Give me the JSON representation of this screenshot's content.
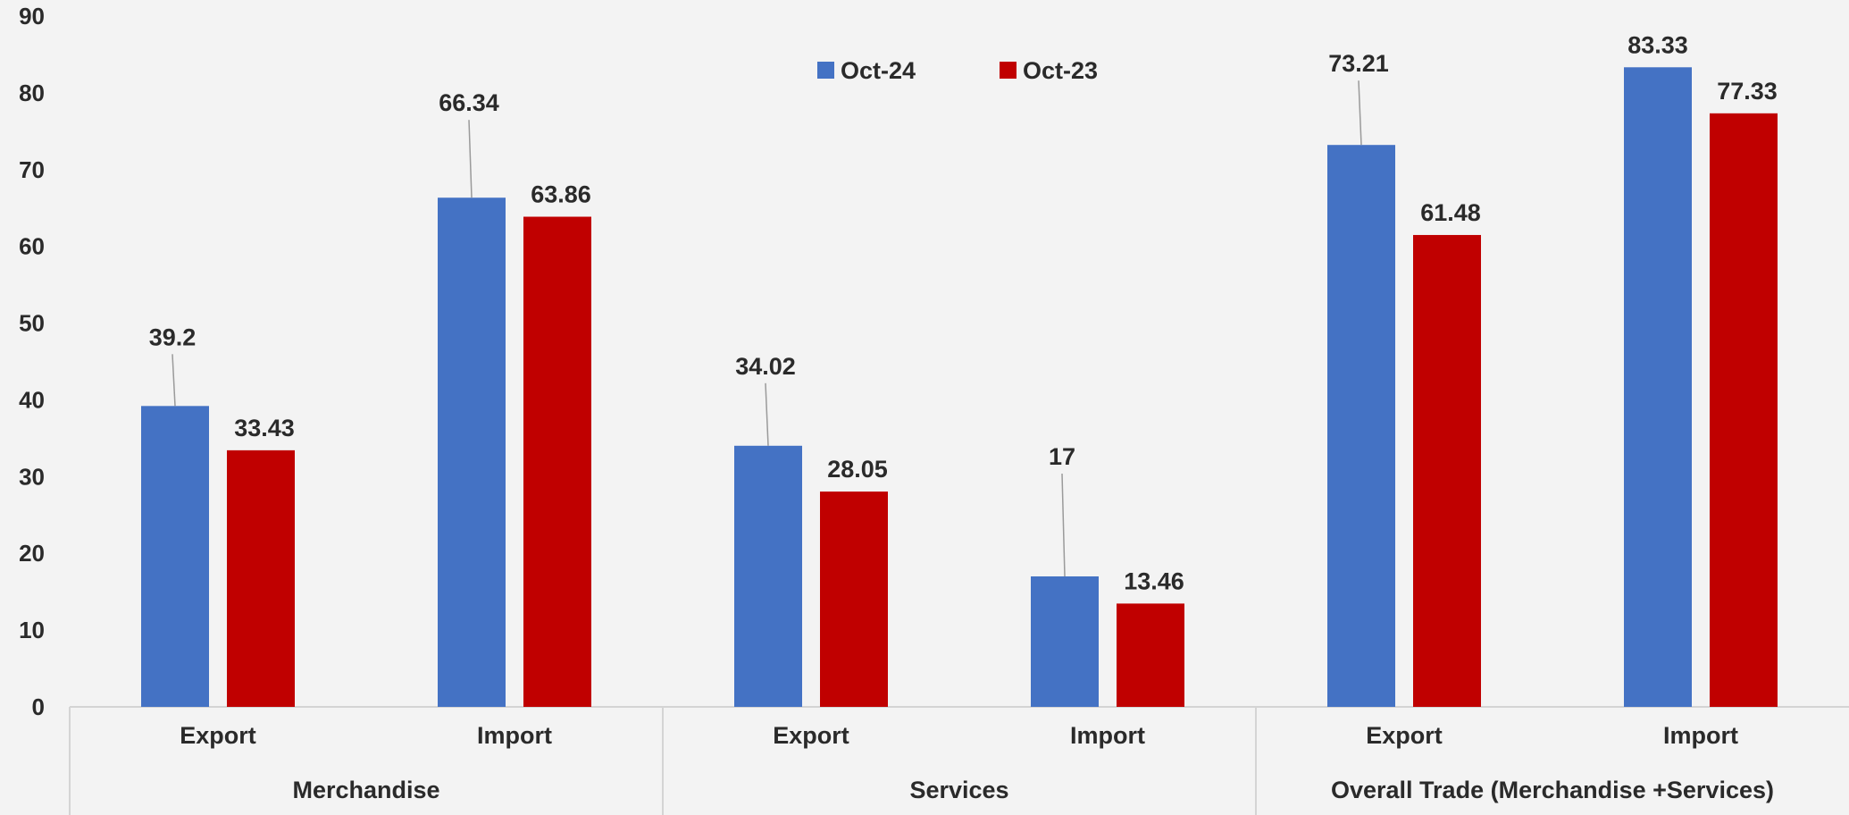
{
  "chart_data": {
    "type": "bar",
    "title": "",
    "xlabel": "",
    "ylabel": "",
    "ylim": [
      0,
      90
    ],
    "y_ticks": [
      0,
      10,
      20,
      30,
      40,
      50,
      60,
      70,
      80,
      90
    ],
    "grid": false,
    "legend_position": "top-center",
    "groups": [
      "Merchandise",
      "Services",
      "Overall Trade (Merchandise +Services)"
    ],
    "categories": [
      "Export",
      "Import",
      "Export",
      "Import",
      "Export",
      "Import"
    ],
    "category_groups": [
      0,
      0,
      1,
      1,
      2,
      2
    ],
    "series": [
      {
        "name": "Oct-24",
        "color": "#4472c4",
        "values": [
          39.2,
          66.34,
          34.02,
          17,
          73.21,
          83.33
        ]
      },
      {
        "name": "Oct-23",
        "color": "#c00000",
        "values": [
          33.43,
          63.86,
          28.05,
          13.46,
          61.48,
          77.33
        ]
      }
    ],
    "data_labels": {
      "Oct-24": [
        "39.2",
        "66.34",
        "34.02",
        "17",
        "73.21",
        "83.33"
      ],
      "Oct-23": [
        "33.43",
        "63.86",
        "28.05",
        "13.46",
        "61.48",
        "77.33"
      ]
    }
  }
}
